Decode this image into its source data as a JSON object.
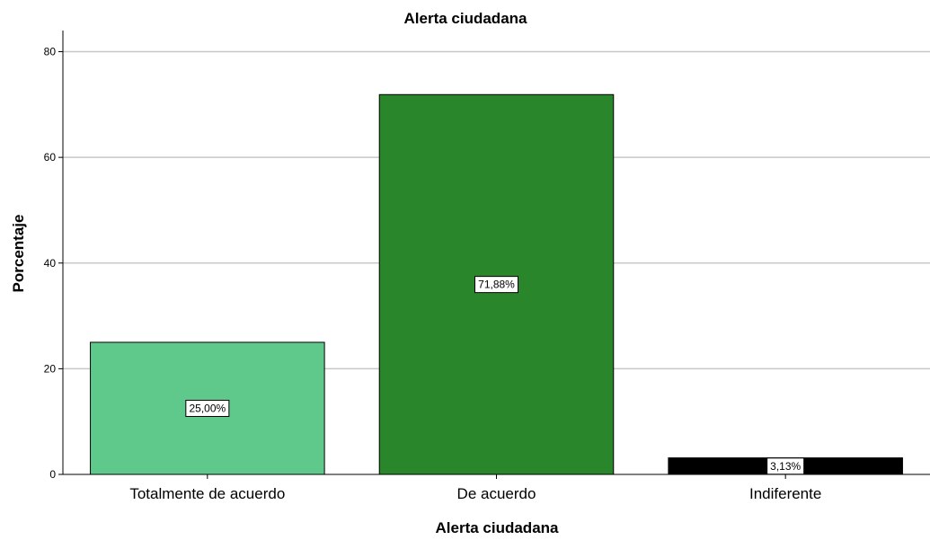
{
  "chart_data": {
    "type": "bar",
    "title": "Alerta ciudadana",
    "xlabel": "Alerta ciudadana",
    "ylabel": "Porcentaje",
    "categories": [
      "Totalmente de acuerdo",
      "De acuerdo",
      "Indiferente"
    ],
    "values": [
      25.0,
      71.88,
      3.13
    ],
    "data_labels": [
      "25,00%",
      "71,88%",
      "3,13%"
    ],
    "colors": [
      "#5ec98b",
      "#2a862a",
      "#000000"
    ],
    "ylim": [
      0,
      84
    ],
    "yticks": [
      0,
      20,
      40,
      60,
      80
    ],
    "grid": true,
    "legend": "none"
  }
}
